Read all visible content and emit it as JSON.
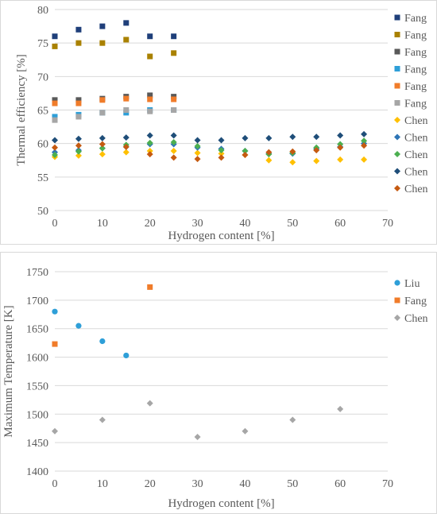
{
  "chart_data": [
    {
      "type": "scatter",
      "xlabel": "Hydrogen content [%]",
      "ylabel": "Thermal efficiency [%]",
      "xlim": [
        0,
        70
      ],
      "ylim": [
        50,
        80
      ],
      "xticks": [
        0,
        10,
        20,
        30,
        40,
        50,
        60,
        70
      ],
      "yticks": [
        50,
        55,
        60,
        65,
        70,
        75,
        80
      ],
      "grid": "horizontal",
      "legend_position": "right",
      "series": [
        {
          "name": "Fang",
          "marker": "square",
          "color": "#1f3f7a",
          "points": [
            [
              0,
              76.0
            ],
            [
              5,
              77.0
            ],
            [
              10,
              77.5
            ],
            [
              15,
              78.0
            ],
            [
              20,
              76.0
            ],
            [
              25,
              76.0
            ]
          ]
        },
        {
          "name": "Fang",
          "marker": "square",
          "color": "#a98100",
          "points": [
            [
              0,
              74.5
            ],
            [
              5,
              75.0
            ],
            [
              10,
              75.0
            ],
            [
              15,
              75.5
            ],
            [
              20,
              73.0
            ],
            [
              25,
              73.5
            ]
          ]
        },
        {
          "name": "Fang",
          "marker": "square",
          "color": "#595959",
          "points": [
            [
              0,
              66.5
            ],
            [
              5,
              66.5
            ],
            [
              10,
              66.7
            ],
            [
              15,
              67.0
            ],
            [
              20,
              67.2
            ],
            [
              25,
              67.0
            ]
          ]
        },
        {
          "name": "Fang",
          "marker": "square",
          "color": "#2e9fd8",
          "points": [
            [
              0,
              64.0
            ],
            [
              5,
              64.3
            ],
            [
              10,
              64.6
            ],
            [
              15,
              64.6
            ],
            [
              20,
              65.0
            ],
            [
              25,
              65.0
            ]
          ]
        },
        {
          "name": "Fang",
          "marker": "square",
          "color": "#f07c2a",
          "points": [
            [
              0,
              66.0
            ],
            [
              5,
              66.0
            ],
            [
              10,
              66.5
            ],
            [
              15,
              66.7
            ],
            [
              20,
              66.6
            ],
            [
              25,
              66.6
            ]
          ]
        },
        {
          "name": "Fang",
          "marker": "square",
          "color": "#a6a6a6",
          "points": [
            [
              0,
              63.5
            ],
            [
              5,
              64.0
            ],
            [
              10,
              64.6
            ],
            [
              15,
              65.0
            ],
            [
              20,
              64.8
            ],
            [
              25,
              65.0
            ]
          ]
        },
        {
          "name": "Chen",
          "marker": "diamond",
          "color": "#ffc000",
          "points": [
            [
              0,
              58.0
            ],
            [
              5,
              58.2
            ],
            [
              10,
              58.4
            ],
            [
              15,
              58.7
            ],
            [
              20,
              58.9
            ],
            [
              25,
              58.9
            ],
            [
              30,
              58.6
            ],
            [
              35,
              58.5
            ],
            [
              40,
              58.3
            ],
            [
              45,
              57.5
            ],
            [
              50,
              57.2
            ],
            [
              55,
              57.4
            ],
            [
              60,
              57.6
            ],
            [
              65,
              57.6
            ]
          ]
        },
        {
          "name": "Chen",
          "marker": "diamond",
          "color": "#2e75b6",
          "points": [
            [
              0,
              58.7
            ],
            [
              5,
              59.0
            ],
            [
              10,
              59.3
            ],
            [
              15,
              59.5
            ],
            [
              20,
              59.9
            ],
            [
              25,
              59.9
            ],
            [
              30,
              59.4
            ],
            [
              35,
              59.2
            ],
            [
              40,
              58.9
            ],
            [
              45,
              58.5
            ],
            [
              50,
              58.5
            ],
            [
              55,
              59.2
            ],
            [
              60,
              59.5
            ],
            [
              65,
              60.0
            ]
          ]
        },
        {
          "name": "Chen",
          "marker": "diamond",
          "color": "#4caf50",
          "points": [
            [
              0,
              58.3
            ],
            [
              5,
              58.8
            ],
            [
              10,
              59.3
            ],
            [
              15,
              59.8
            ],
            [
              20,
              60.1
            ],
            [
              25,
              60.2
            ],
            [
              30,
              59.6
            ],
            [
              35,
              59.0
            ],
            [
              40,
              58.9
            ],
            [
              45,
              58.4
            ],
            [
              50,
              58.6
            ],
            [
              55,
              59.4
            ],
            [
              60,
              59.9
            ],
            [
              65,
              60.4
            ]
          ]
        },
        {
          "name": "Chen",
          "marker": "diamond",
          "color": "#1f4e79",
          "points": [
            [
              0,
              60.5
            ],
            [
              5,
              60.7
            ],
            [
              10,
              60.8
            ],
            [
              15,
              60.9
            ],
            [
              20,
              61.2
            ],
            [
              25,
              61.2
            ],
            [
              30,
              60.5
            ],
            [
              35,
              60.5
            ],
            [
              40,
              60.8
            ],
            [
              45,
              60.8
            ],
            [
              50,
              61.0
            ],
            [
              55,
              61.0
            ],
            [
              60,
              61.2
            ],
            [
              65,
              61.4
            ]
          ]
        },
        {
          "name": "Chen",
          "marker": "diamond",
          "color": "#c55a11",
          "points": [
            [
              0,
              59.4
            ],
            [
              5,
              59.7
            ],
            [
              10,
              59.9
            ],
            [
              15,
              59.5
            ],
            [
              20,
              58.4
            ],
            [
              25,
              57.9
            ],
            [
              30,
              57.7
            ],
            [
              35,
              57.9
            ],
            [
              40,
              58.3
            ],
            [
              45,
              58.7
            ],
            [
              50,
              58.8
            ],
            [
              55,
              59.0
            ],
            [
              60,
              59.4
            ],
            [
              65,
              59.7
            ]
          ]
        }
      ]
    },
    {
      "type": "scatter",
      "xlabel": "Hydrogen content [%]",
      "ylabel": "Maximum Temperature [K]",
      "xlim": [
        0,
        70
      ],
      "ylim": [
        1400,
        1750
      ],
      "xticks": [
        0,
        10,
        20,
        30,
        40,
        50,
        60,
        70
      ],
      "yticks": [
        1400,
        1450,
        1500,
        1550,
        1600,
        1650,
        1700,
        1750
      ],
      "grid": "horizontal",
      "legend_position": "right",
      "series": [
        {
          "name": "Liu",
          "marker": "circle",
          "color": "#2e9fd8",
          "points": [
            [
              0,
              1680
            ],
            [
              5,
              1655
            ],
            [
              10,
              1628
            ],
            [
              15,
              1603
            ]
          ]
        },
        {
          "name": "Fang",
          "marker": "square",
          "color": "#f07c2a",
          "points": [
            [
              0,
              1623
            ],
            [
              20,
              1723
            ]
          ]
        },
        {
          "name": "Chen",
          "marker": "diamond",
          "color": "#a6a6a6",
          "points": [
            [
              0,
              1470
            ],
            [
              10,
              1490
            ],
            [
              20,
              1519
            ],
            [
              30,
              1460
            ],
            [
              40,
              1470
            ],
            [
              50,
              1490
            ],
            [
              60,
              1509
            ]
          ]
        }
      ]
    }
  ]
}
